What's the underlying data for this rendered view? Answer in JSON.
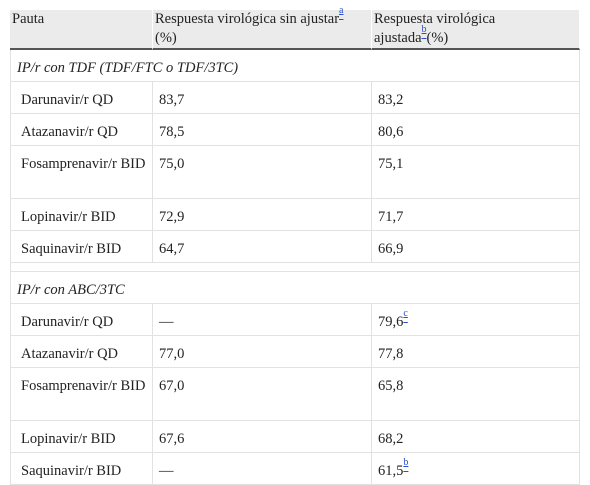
{
  "header": {
    "col1": "Pauta",
    "col2": "Respuesta virológica sin ajustar",
    "col2_sup": "a",
    "col2_unit": "(%)",
    "col3_line1": "Respuesta virológica",
    "col3_line2": "ajustada",
    "col3_sup": "b",
    "col3_unit": "(%)"
  },
  "sections": [
    {
      "title": "IP/r con TDF (TDF/FTC o TDF/3TC)",
      "rows": [
        {
          "regimen": "Darunavir/r QD",
          "unadjusted": "83,7",
          "adjusted": "83,2",
          "adjusted_sup": ""
        },
        {
          "regimen": "Atazanavir/r QD",
          "unadjusted": "78,5",
          "adjusted": "80,6",
          "adjusted_sup": ""
        },
        {
          "regimen": "Fosamprenavir/r BID",
          "unadjusted": "75,0",
          "adjusted": "75,1",
          "adjusted_sup": ""
        },
        {
          "regimen": "Lopinavir/r BID",
          "unadjusted": "72,9",
          "adjusted": "71,7",
          "adjusted_sup": ""
        },
        {
          "regimen": "Saquinavir/r BID",
          "unadjusted": "64,7",
          "adjusted": "66,9",
          "adjusted_sup": ""
        }
      ]
    },
    {
      "title": "IP/r con ABC/3TC",
      "rows": [
        {
          "regimen": "Darunavir/r QD",
          "unadjusted": "—",
          "adjusted": "79,6",
          "adjusted_sup": "c"
        },
        {
          "regimen": "Atazanavir/r QD",
          "unadjusted": "77,0",
          "adjusted": "77,8",
          "adjusted_sup": ""
        },
        {
          "regimen": "Fosamprenavir/r BID",
          "unadjusted": "67,0",
          "adjusted": "65,8",
          "adjusted_sup": ""
        },
        {
          "regimen": "Lopinavir/r BID",
          "unadjusted": "67,6",
          "adjusted": "68,2",
          "adjusted_sup": ""
        },
        {
          "regimen": "Saquinavir/r BID",
          "unadjusted": "—",
          "adjusted": "61,5",
          "adjusted_sup": "b"
        }
      ]
    }
  ]
}
